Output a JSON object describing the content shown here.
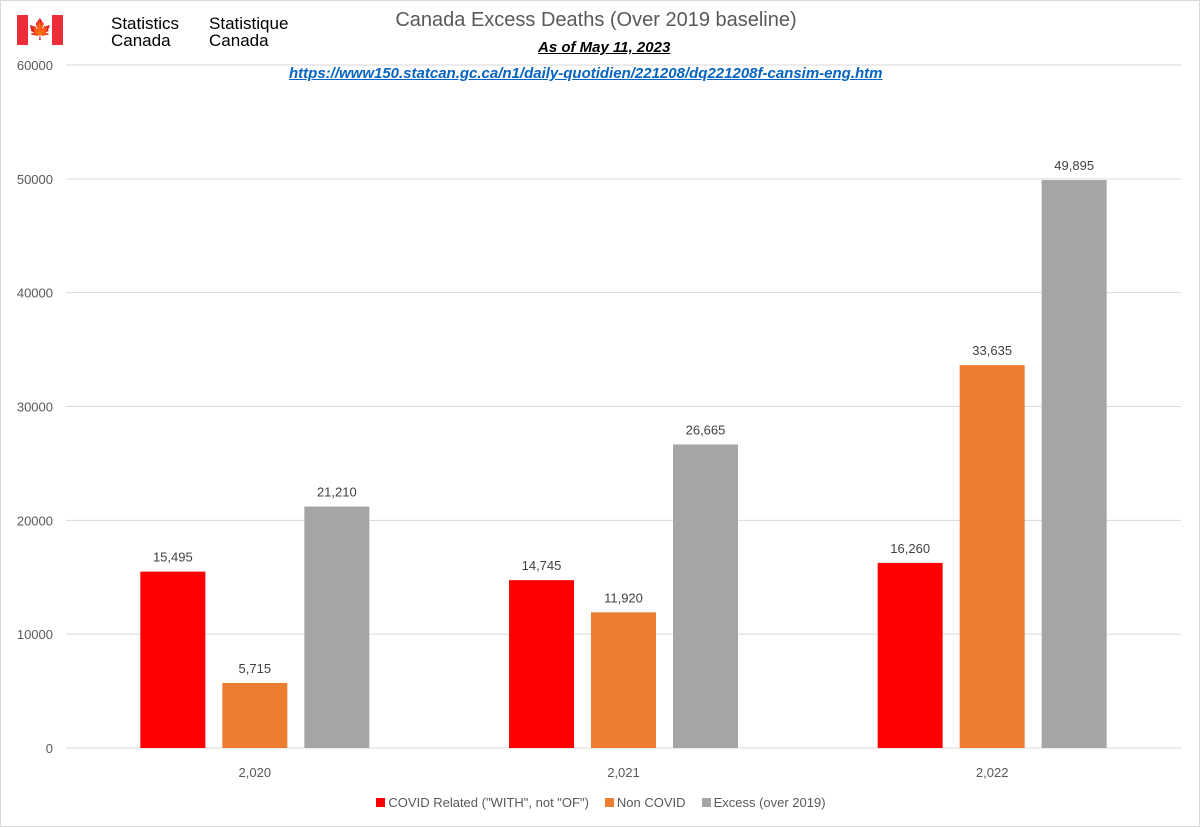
{
  "logo": {
    "en_line1": "Statistics",
    "en_line2": "Canada",
    "fr_line1": "Statistique",
    "fr_line2": "Canada",
    "flag_icon": "maple-leaf"
  },
  "chart_data": {
    "type": "bar",
    "title": "Canada Excess Deaths (Over 2019 baseline)",
    "subtitle": "As of May 11, 2023",
    "source_url": "https://www150.statcan.gc.ca/n1/daily-quotidien/221208/dq221208f-cansim-eng.htm",
    "categories": [
      "2,020",
      "2,021",
      "2,022"
    ],
    "series": [
      {
        "name": "COVID Related (\"WITH\", not \"OF\")",
        "color": "#ff0000",
        "values": [
          15495,
          14745,
          16260
        ],
        "labels": [
          "15,495",
          "14,745",
          "16,260"
        ]
      },
      {
        "name": "Non COVID",
        "color": "#ed7d31",
        "values": [
          5715,
          11920,
          33635
        ],
        "labels": [
          "5,715",
          "11,920",
          "33,635"
        ]
      },
      {
        "name": "Excess (over 2019)",
        "color": "#a5a5a5",
        "values": [
          21210,
          26665,
          49895
        ],
        "labels": [
          "21,210",
          "26,665",
          "49,895"
        ]
      }
    ],
    "ylim": [
      0,
      60000
    ],
    "yticks": [
      "0",
      "10000",
      "20000",
      "30000",
      "40000",
      "50000",
      "60000"
    ],
    "ytick_values": [
      0,
      10000,
      20000,
      30000,
      40000,
      50000,
      60000
    ],
    "grid": true,
    "legend": "bottom"
  }
}
